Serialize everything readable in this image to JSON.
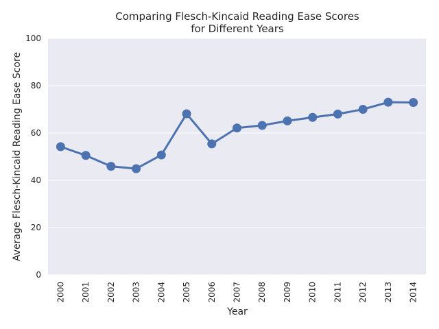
{
  "chart_data": {
    "type": "line",
    "title_line1": "Comparing Flesch-Kincaid Reading Ease Scores",
    "title_line2": "for Different Years",
    "xlabel": "Year",
    "ylabel": "Average Flesch-Kincaid Reading Ease Score",
    "categories": [
      "2000",
      "2001",
      "2002",
      "2003",
      "2004",
      "2005",
      "2006",
      "2007",
      "2008",
      "2009",
      "2010",
      "2011",
      "2012",
      "2013",
      "2014"
    ],
    "values": [
      54.2,
      50.5,
      45.9,
      44.9,
      50.7,
      68.1,
      55.4,
      62.1,
      63.2,
      65.1,
      66.6,
      68.0,
      70.0,
      73.0,
      72.9
    ],
    "ylim": [
      0,
      100
    ],
    "yticks": [
      0,
      20,
      40,
      60,
      80,
      100
    ],
    "grid": true,
    "line_color": "#4c72b0",
    "background_color": "#eaeaf2"
  }
}
